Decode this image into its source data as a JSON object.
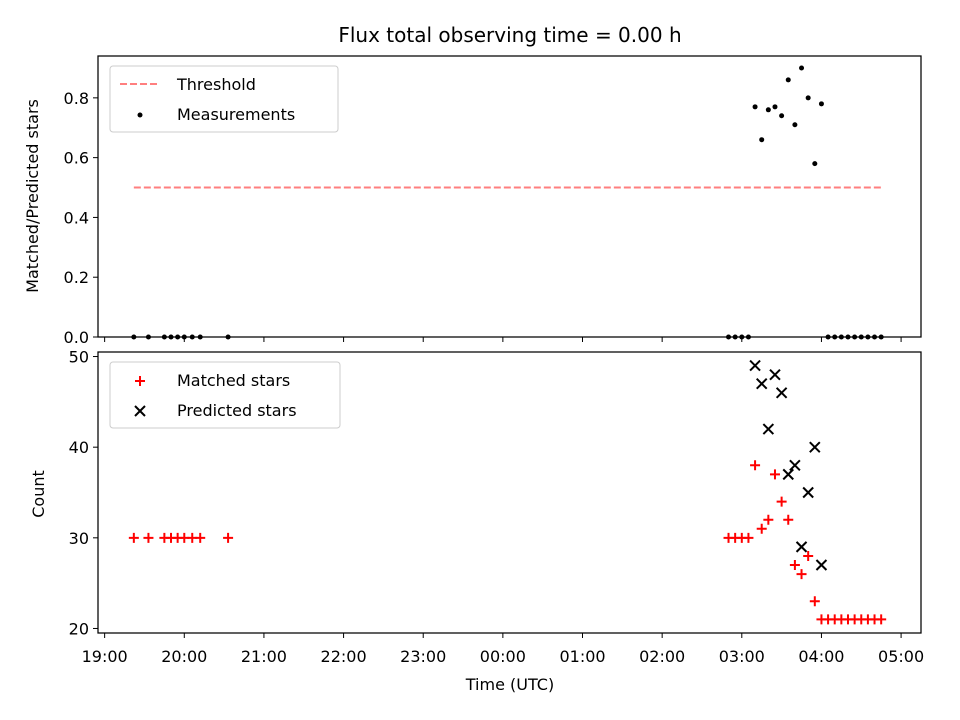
{
  "chart_data": {
    "title": "Flux total observing time = 0.00 h",
    "xlabel": "Time (UTC)",
    "x_ticks": [
      "19:00",
      "20:00",
      "21:00",
      "22:00",
      "23:00",
      "00:00",
      "01:00",
      "02:00",
      "03:00",
      "04:00",
      "05:00"
    ],
    "xlim": [
      "18:55",
      "05:15"
    ],
    "panels": [
      {
        "type": "scatter",
        "ylabel": "Matched/Predicted stars",
        "ylim": [
          0,
          0.94
        ],
        "y_ticks": [
          "0.0",
          "0.2",
          "0.4",
          "0.6",
          "0.8"
        ],
        "legend_position": "upper-left",
        "series": [
          {
            "name": "Threshold",
            "kind": "line",
            "style": "dashed",
            "color": "#ff7f7f",
            "points": [
              [
                "19:22",
                0.5
              ],
              [
                "04:45",
                0.5
              ]
            ]
          },
          {
            "name": "Measurements",
            "kind": "scatter",
            "marker": "dot",
            "color": "#000000",
            "points": [
              [
                "19:22",
                0.0
              ],
              [
                "19:33",
                0.0
              ],
              [
                "19:45",
                0.0
              ],
              [
                "19:50",
                0.0
              ],
              [
                "19:55",
                0.0
              ],
              [
                "20:00",
                0.0
              ],
              [
                "20:06",
                0.0
              ],
              [
                "20:12",
                0.0
              ],
              [
                "20:33",
                0.0
              ],
              [
                "02:50",
                0.0
              ],
              [
                "02:55",
                0.0
              ],
              [
                "03:00",
                0.0
              ],
              [
                "03:05",
                0.0
              ],
              [
                "03:10",
                0.77
              ],
              [
                "03:15",
                0.66
              ],
              [
                "03:20",
                0.76
              ],
              [
                "03:25",
                0.77
              ],
              [
                "03:30",
                0.74
              ],
              [
                "03:35",
                0.86
              ],
              [
                "03:40",
                0.71
              ],
              [
                "03:45",
                0.9
              ],
              [
                "03:50",
                0.8
              ],
              [
                "03:55",
                0.58
              ],
              [
                "04:00",
                0.78
              ],
              [
                "04:05",
                0.0
              ],
              [
                "04:10",
                0.0
              ],
              [
                "04:15",
                0.0
              ],
              [
                "04:20",
                0.0
              ],
              [
                "04:25",
                0.0
              ],
              [
                "04:30",
                0.0
              ],
              [
                "04:35",
                0.0
              ],
              [
                "04:40",
                0.0
              ],
              [
                "04:45",
                0.0
              ]
            ]
          }
        ]
      },
      {
        "type": "scatter",
        "ylabel": "Count",
        "ylim": [
          19.5,
          50.5
        ],
        "y_ticks": [
          "20",
          "30",
          "40",
          "50"
        ],
        "legend_position": "upper-left",
        "series": [
          {
            "name": "Matched stars",
            "kind": "scatter",
            "marker": "plus",
            "color": "#ff0000",
            "points": [
              [
                "19:22",
                30
              ],
              [
                "19:33",
                30
              ],
              [
                "19:45",
                30
              ],
              [
                "19:50",
                30
              ],
              [
                "19:55",
                30
              ],
              [
                "20:00",
                30
              ],
              [
                "20:06",
                30
              ],
              [
                "20:12",
                30
              ],
              [
                "20:33",
                30
              ],
              [
                "02:50",
                30
              ],
              [
                "02:55",
                30
              ],
              [
                "03:00",
                30
              ],
              [
                "03:05",
                30
              ],
              [
                "03:10",
                38
              ],
              [
                "03:15",
                31
              ],
              [
                "03:20",
                32
              ],
              [
                "03:25",
                37
              ],
              [
                "03:30",
                34
              ],
              [
                "03:35",
                32
              ],
              [
                "03:40",
                27
              ],
              [
                "03:45",
                26
              ],
              [
                "03:50",
                28
              ],
              [
                "03:55",
                23
              ],
              [
                "04:00",
                21
              ],
              [
                "04:05",
                21
              ],
              [
                "04:10",
                21
              ],
              [
                "04:15",
                21
              ],
              [
                "04:20",
                21
              ],
              [
                "04:25",
                21
              ],
              [
                "04:30",
                21
              ],
              [
                "04:35",
                21
              ],
              [
                "04:40",
                21
              ],
              [
                "04:45",
                21
              ]
            ]
          },
          {
            "name": "Predicted stars",
            "kind": "scatter",
            "marker": "x",
            "color": "#000000",
            "points": [
              [
                "03:10",
                49
              ],
              [
                "03:15",
                47
              ],
              [
                "03:20",
                42
              ],
              [
                "03:25",
                48
              ],
              [
                "03:30",
                46
              ],
              [
                "03:35",
                37
              ],
              [
                "03:40",
                38
              ],
              [
                "03:45",
                29
              ],
              [
                "03:50",
                35
              ],
              [
                "03:55",
                40
              ],
              [
                "04:00",
                27
              ]
            ]
          }
        ]
      }
    ]
  }
}
